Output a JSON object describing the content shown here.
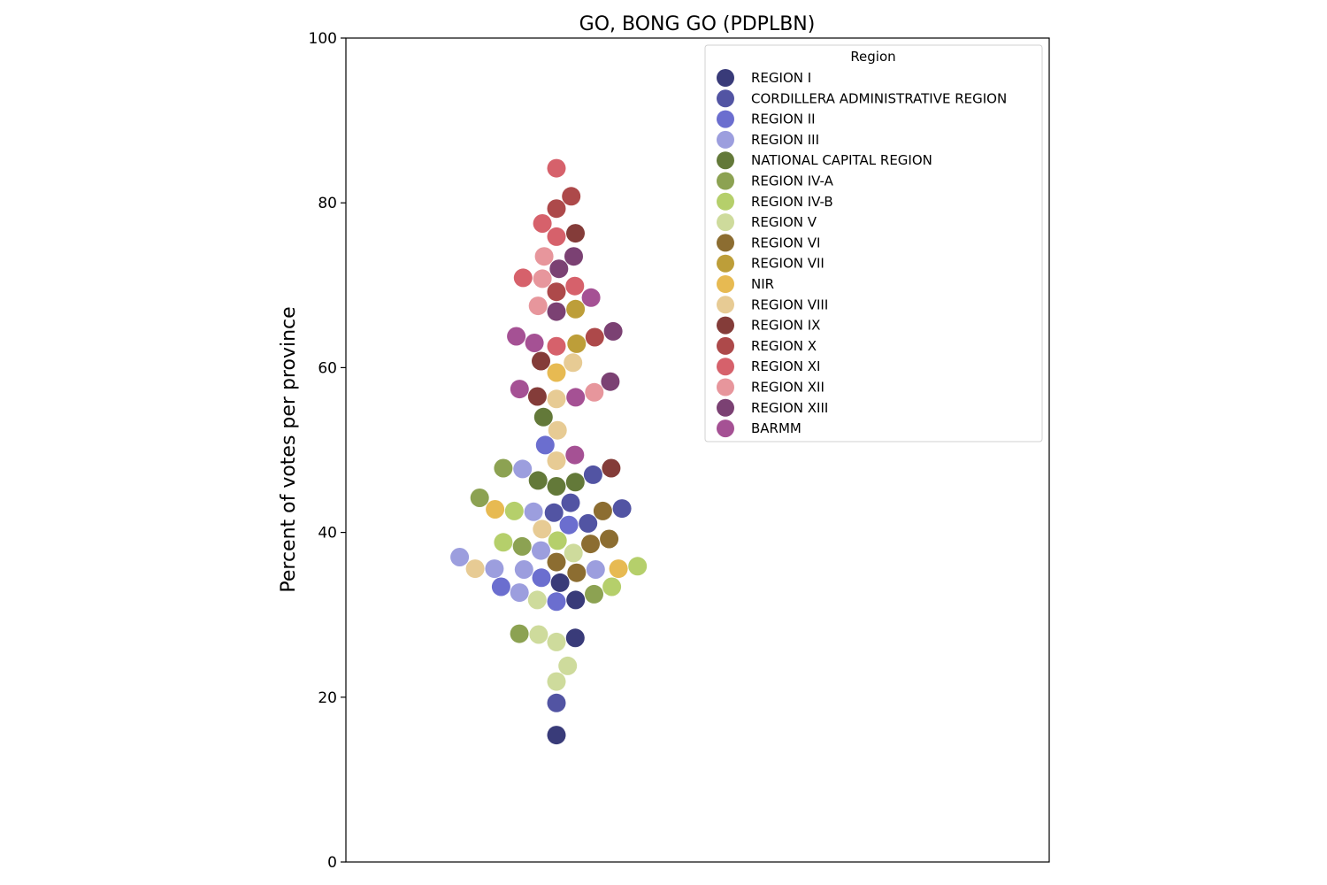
{
  "chart_data": {
    "type": "scatter",
    "title": "GO, BONG GO    (PDPLBN)",
    "ylabel": "Percent of votes per province",
    "xlabel": "",
    "ylim": [
      0,
      100
    ],
    "yticks": [
      "0",
      "20",
      "40",
      "60",
      "80",
      "100"
    ],
    "grid": false,
    "legend": {
      "title": "Region",
      "placement": "top-right",
      "entries": [
        {
          "name": "REGION I",
          "color": "#393b79"
        },
        {
          "name": "CORDILLERA ADMINISTRATIVE REGION",
          "color": "#5254a3"
        },
        {
          "name": "REGION II",
          "color": "#6b6ecf"
        },
        {
          "name": "REGION III",
          "color": "#9c9ede"
        },
        {
          "name": "NATIONAL CAPITAL REGION",
          "color": "#637939"
        },
        {
          "name": "REGION IV-A",
          "color": "#8ca252"
        },
        {
          "name": "REGION IV-B",
          "color": "#b5cf6b"
        },
        {
          "name": "REGION V",
          "color": "#cedb9c"
        },
        {
          "name": "REGION VI",
          "color": "#8c6d31"
        },
        {
          "name": "REGION VII",
          "color": "#bd9e39"
        },
        {
          "name": "NIR",
          "color": "#e7ba52"
        },
        {
          "name": "REGION VIII",
          "color": "#e7cb94"
        },
        {
          "name": "REGION IX",
          "color": "#843c39"
        },
        {
          "name": "REGION X",
          "color": "#ad494a"
        },
        {
          "name": "REGION XI",
          "color": "#d6616b"
        },
        {
          "name": "REGION XII",
          "color": "#e7969c"
        },
        {
          "name": "REGION XIII",
          "color": "#7b4173"
        },
        {
          "name": "BARMM",
          "color": "#a55194"
        }
      ]
    },
    "series": [
      {
        "region": 0,
        "values": [
          15.4,
          27.2,
          31.8,
          33.9
        ]
      },
      {
        "region": 1,
        "values": [
          19.3,
          41.1,
          42.4,
          42.9,
          43.6,
          47.0
        ]
      },
      {
        "region": 2,
        "values": [
          31.6,
          33.4,
          34.5,
          40.9,
          50.6
        ]
      },
      {
        "region": 3,
        "values": [
          32.7,
          35.5,
          35.5,
          35.6,
          37.0,
          37.8,
          42.5,
          47.7
        ]
      },
      {
        "region": 4,
        "values": [
          45.6,
          46.1,
          46.3,
          54.0
        ]
      },
      {
        "region": 5,
        "values": [
          27.7,
          32.5,
          38.3,
          44.2,
          47.8
        ]
      },
      {
        "region": 6,
        "values": [
          33.4,
          35.9,
          38.8,
          39.0,
          42.6
        ]
      },
      {
        "region": 7,
        "values": [
          21.9,
          23.8,
          26.7,
          27.6,
          31.8,
          37.5
        ]
      },
      {
        "region": 8,
        "values": [
          35.1,
          36.4,
          38.6,
          39.2,
          42.6
        ]
      },
      {
        "region": 9,
        "values": [
          62.9,
          67.1
        ]
      },
      {
        "region": 10,
        "values": [
          35.6,
          42.8,
          59.4
        ]
      },
      {
        "region": 11,
        "values": [
          35.6,
          40.4,
          48.7,
          52.4,
          56.2,
          60.6
        ]
      },
      {
        "region": 12,
        "values": [
          47.8,
          56.5,
          60.8,
          76.3
        ]
      },
      {
        "region": 13,
        "values": [
          63.7,
          69.2,
          79.3,
          80.8
        ]
      },
      {
        "region": 14,
        "values": [
          62.6,
          69.9,
          70.9,
          75.9,
          77.5,
          84.2
        ]
      },
      {
        "region": 15,
        "values": [
          57.0,
          67.5,
          70.8,
          73.5
        ]
      },
      {
        "region": 16,
        "values": [
          58.3,
          64.4,
          66.8,
          72.0,
          73.5
        ]
      },
      {
        "region": 17,
        "values": [
          49.4,
          56.4,
          57.4,
          63.0,
          63.8,
          68.5
        ]
      }
    ]
  }
}
